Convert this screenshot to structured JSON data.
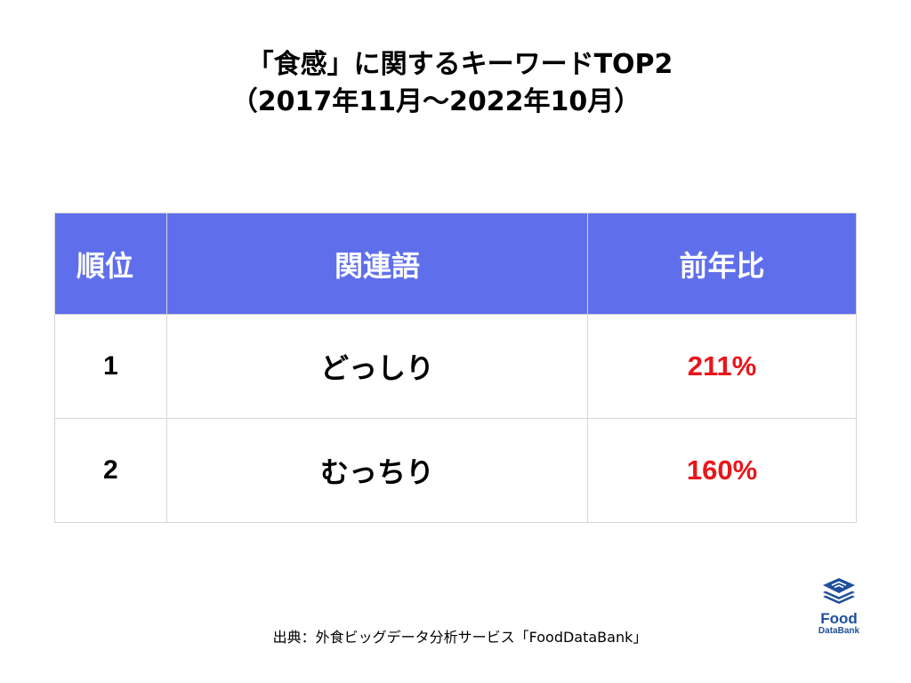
{
  "title": {
    "line1": "「食感」に関するキーワードTOP2",
    "line2": "（2017年11月〜2022年10月）"
  },
  "table": {
    "headers": {
      "rank": "順位",
      "keyword": "関連語",
      "yoy": "前年比"
    },
    "rows": [
      {
        "rank": "1",
        "keyword": "どっしり",
        "yoy": "211%"
      },
      {
        "rank": "2",
        "keyword": "むっちり",
        "yoy": "160%"
      }
    ],
    "header_color": "#5f6fec",
    "highlight_color": "#e8161b"
  },
  "source": "出典：外食ビッグデータ分析サービス「FoodDataBank」",
  "logo": {
    "icon": "stacked-layers-icon",
    "word": "Food",
    "sub": "DataBank",
    "color": "#1d4f9c"
  }
}
